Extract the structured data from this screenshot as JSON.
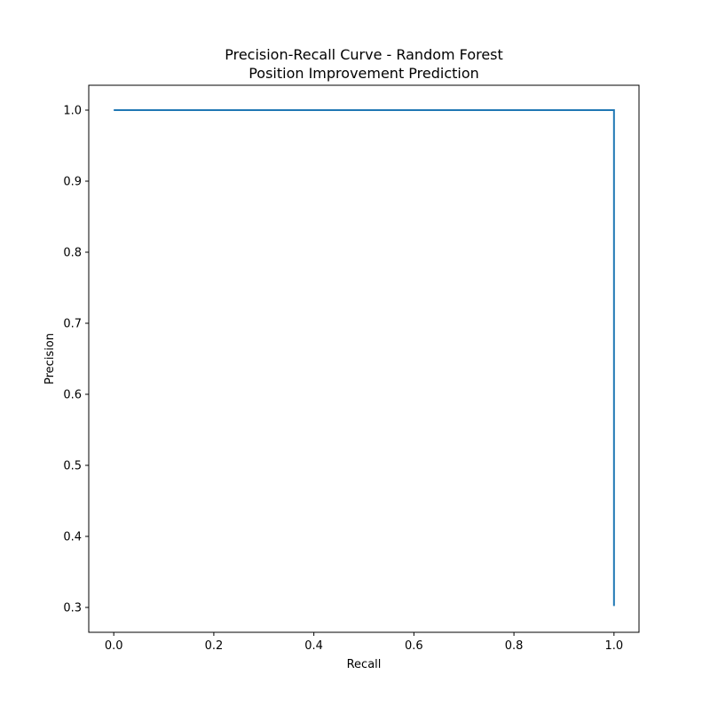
{
  "chart_data": {
    "type": "line",
    "title": [
      "Precision-Recall Curve - Random Forest",
      "Position Improvement Prediction"
    ],
    "xlabel": "Recall",
    "ylabel": "Precision",
    "xlim": [
      -0.05,
      1.05
    ],
    "ylim": [
      0.265,
      1.035
    ],
    "x_ticks": [
      0.0,
      0.2,
      0.4,
      0.6,
      0.8,
      1.0
    ],
    "x_tick_labels": [
      "0.0",
      "0.2",
      "0.4",
      "0.6",
      "0.8",
      "1.0"
    ],
    "y_ticks": [
      0.3,
      0.4,
      0.5,
      0.6,
      0.7,
      0.8,
      0.9,
      1.0
    ],
    "y_tick_labels": [
      "0.3",
      "0.4",
      "0.5",
      "0.6",
      "0.7",
      "0.8",
      "0.9",
      "1.0"
    ],
    "grid": false,
    "series": [
      {
        "color": "#1f77b4",
        "x": [
          0.0,
          1.0,
          1.0
        ],
        "y": [
          1.0,
          1.0,
          0.302
        ]
      }
    ]
  }
}
